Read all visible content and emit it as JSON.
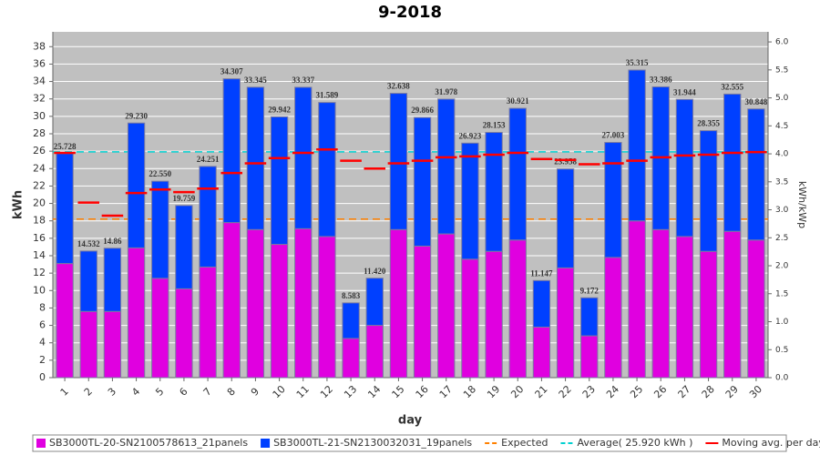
{
  "chart_data": {
    "type": "stacked_bar",
    "title": "9-2018",
    "x_label": "day",
    "y_label": "kWh",
    "y2_label": "kWh/kWp",
    "categories": [
      "1",
      "2",
      "3",
      "4",
      "5",
      "6",
      "7",
      "8",
      "9",
      "10",
      "11",
      "12",
      "13",
      "14",
      "15",
      "16",
      "17",
      "18",
      "19",
      "20",
      "21",
      "22",
      "23",
      "24",
      "25",
      "26",
      "27",
      "28",
      "29",
      "30"
    ],
    "series": [
      {
        "name": "SB3000TL-20-SN2100578613_21panels",
        "color": "#e000e0",
        "values": [
          13.1,
          7.6,
          7.6,
          14.9,
          11.4,
          10.2,
          12.7,
          17.8,
          17.0,
          15.3,
          17.1,
          16.2,
          4.5,
          6.0,
          17.0,
          15.1,
          16.5,
          13.6,
          14.5,
          15.8,
          5.8,
          12.6,
          4.8,
          13.8,
          18.0,
          17.0,
          16.2,
          14.5,
          16.8,
          15.8
        ]
      },
      {
        "name": "SB3000TL-21-SN2130032031_19panels",
        "color": "#0040ff",
        "values": [
          12.628,
          6.932,
          7.26,
          14.33,
          11.15,
          9.559,
          11.551,
          16.507,
          16.345,
          14.642,
          16.237,
          15.389,
          4.083,
          5.42,
          15.638,
          14.766,
          15.478,
          13.323,
          13.653,
          15.121,
          5.347,
          11.358,
          4.372,
          13.203,
          17.315,
          16.386,
          15.744,
          13.855,
          15.755,
          15.048
        ]
      }
    ],
    "totals": [
      25.728,
      14.532,
      14.86,
      29.23,
      22.55,
      19.759,
      24.251,
      34.307,
      33.345,
      29.942,
      33.337,
      31.589,
      8.583,
      11.42,
      32.638,
      29.866,
      31.978,
      26.923,
      28.153,
      30.921,
      11.147,
      23.958,
      9.172,
      27.003,
      35.315,
      33.386,
      31.944,
      28.355,
      32.555,
      30.848
    ],
    "total_labels": [
      "25.728",
      "14.532",
      "14.86",
      "29.230",
      "22.550",
      "19.759",
      "24.251",
      "34.307",
      "33.345",
      "29.942",
      "33.337",
      "31.589",
      "8.583",
      "11.420",
      "32.638",
      "29.866",
      "31.978",
      "26.923",
      "28.153",
      "30.921",
      "11.147",
      "23.958",
      "9.172",
      "27.003",
      "35.315",
      "33.386",
      "31.944",
      "28.355",
      "32.555",
      "30.848"
    ],
    "reference_lines": [
      {
        "name": "Expected",
        "color": "#ff8000",
        "value": 18.2
      },
      {
        "name": "Average( 25.920 kWh )",
        "color": "#00d0d0",
        "value": 25.92
      }
    ],
    "moving_average": {
      "name": "Moving avg. per day.",
      "color": "#ff0000",
      "values": [
        25.8,
        20.1,
        18.6,
        21.2,
        21.6,
        21.3,
        21.7,
        23.5,
        24.6,
        25.2,
        25.8,
        26.2,
        24.9,
        24.0,
        24.6,
        24.9,
        25.3,
        25.4,
        25.6,
        25.8,
        25.1,
        25.0,
        24.5,
        24.6,
        24.9,
        25.3,
        25.5,
        25.6,
        25.8,
        25.9
      ]
    },
    "ylim": [
      0,
      39.7
    ],
    "yticks": [
      0,
      2,
      4,
      6,
      8,
      10,
      12,
      14,
      16,
      18,
      20,
      22,
      24,
      26,
      28,
      30,
      32,
      34,
      36,
      38
    ],
    "y2lim": [
      0,
      6.18
    ],
    "y2ticks": [
      {
        "value": 0,
        "label": "0.0"
      },
      {
        "value": 0.5,
        "label": "0.5"
      },
      {
        "value": 1,
        "label": "1.0"
      },
      {
        "value": 1.5,
        "label": "1.5"
      },
      {
        "value": 2,
        "label": "2.0"
      },
      {
        "value": 2.5,
        "label": "2.5"
      },
      {
        "value": 3,
        "label": "3.0"
      },
      {
        "value": 3.5,
        "label": "3.5"
      },
      {
        "value": 4,
        "label": "4.0"
      },
      {
        "value": 4.5,
        "label": "4.5"
      },
      {
        "value": 5,
        "label": "5.0"
      },
      {
        "value": 5.5,
        "label": "5.5"
      },
      {
        "value": 6,
        "label": "6.0"
      }
    ],
    "grid": true
  }
}
